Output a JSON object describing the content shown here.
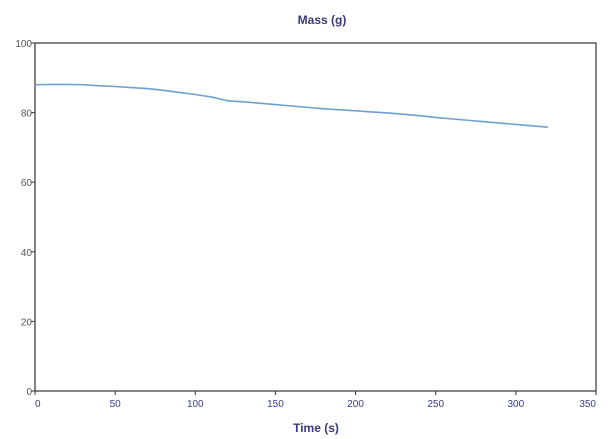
{
  "chart_data": {
    "type": "line",
    "title": "Mass (g)",
    "xlabel": "Time (s)",
    "ylabel": "",
    "xlim": [
      0,
      350
    ],
    "ylim": [
      0,
      100
    ],
    "x_ticks": [
      "0",
      "50",
      "100",
      "150",
      "200",
      "250",
      "300",
      "350"
    ],
    "y_ticks": [
      "0",
      "20",
      "40",
      "60",
      "80",
      "100"
    ],
    "grid": false,
    "legend": "none",
    "series": [
      {
        "color": "#6fa0cf",
        "x": [
          0,
          10,
          20,
          30,
          40,
          50,
          60,
          70,
          80,
          90,
          100,
          110,
          120,
          130,
          140,
          150,
          160,
          170,
          180,
          190,
          200,
          210,
          220,
          230,
          240,
          250,
          260,
          270,
          280,
          290,
          300,
          310,
          320
        ],
        "y": [
          88,
          88.1,
          88.1,
          88,
          87.7,
          87.5,
          87.2,
          86.9,
          86.4,
          85.8,
          85.2,
          84.5,
          83.4,
          83.1,
          82.7,
          82.3,
          81.9,
          81.5,
          81.1,
          80.8,
          80.5,
          80.2,
          79.9,
          79.5,
          79.1,
          78.6,
          78.2,
          77.8,
          77.4,
          77,
          76.6,
          76.2,
          75.8
        ]
      }
    ]
  }
}
